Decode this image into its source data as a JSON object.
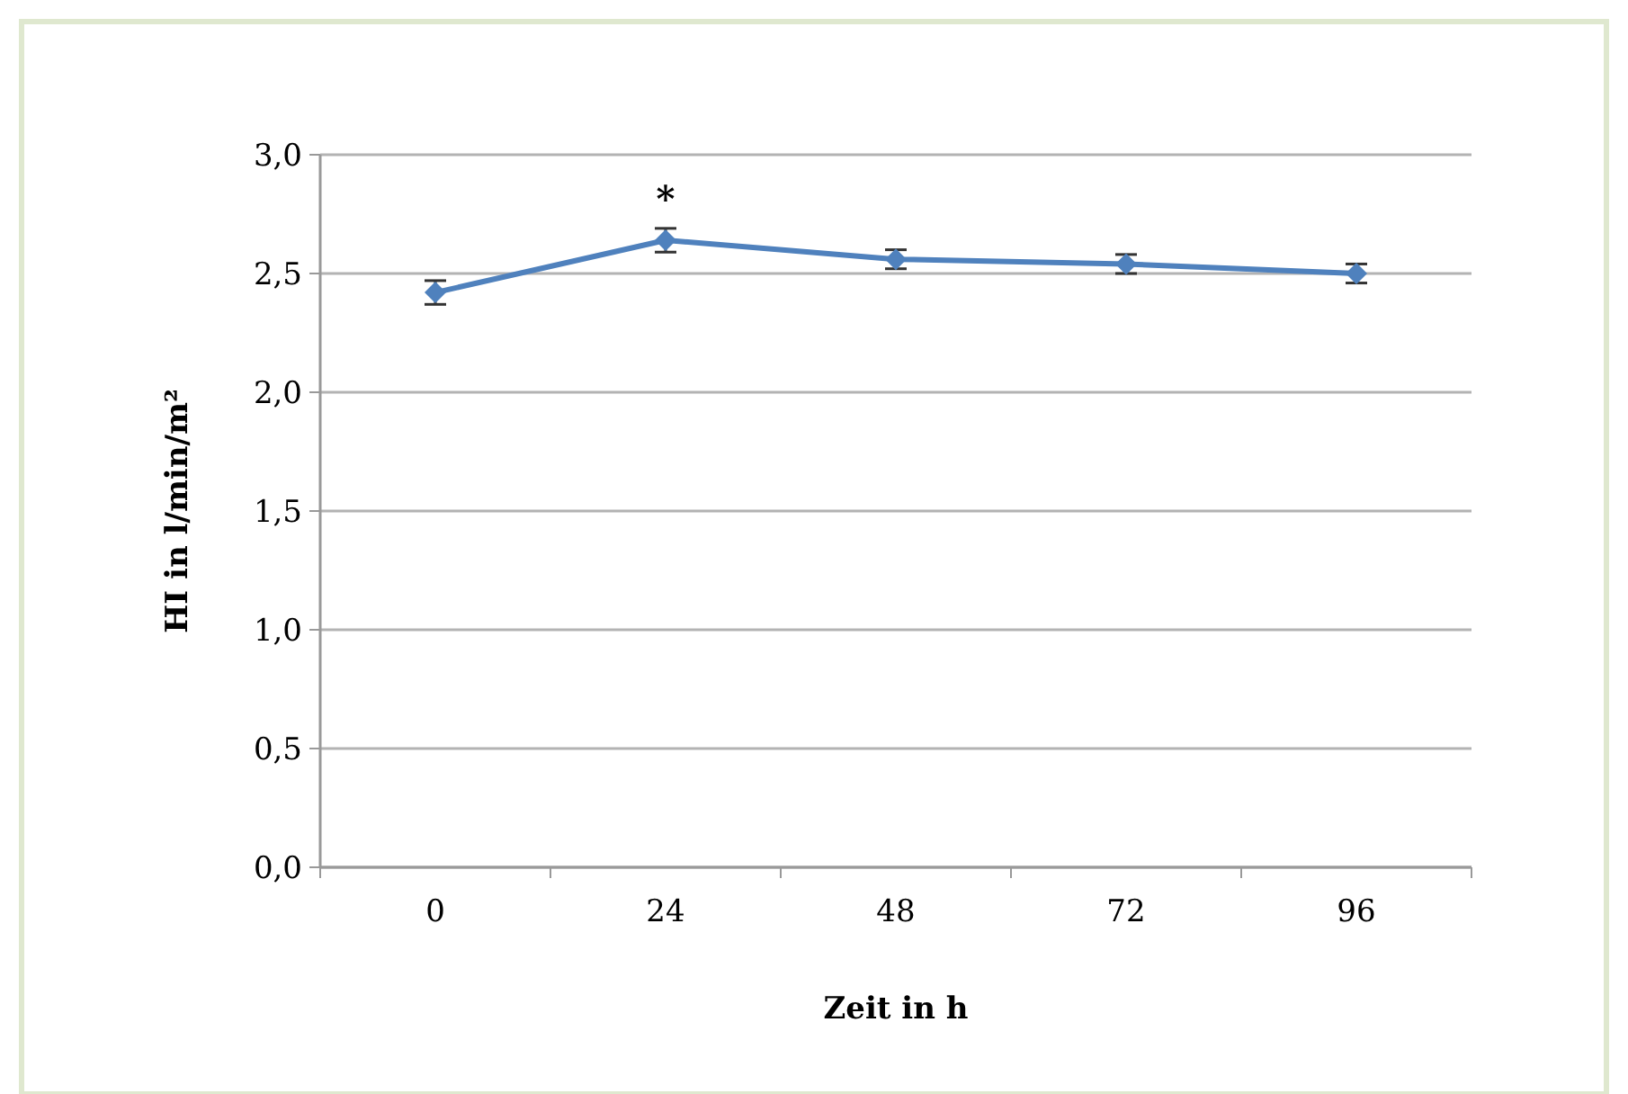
{
  "chart_data": {
    "type": "line",
    "xlabel": "Zeit in h",
    "ylabel": "HI in l/min/m²",
    "categories": [
      "0",
      "24",
      "48",
      "72",
      "96"
    ],
    "series": [
      {
        "color": "#4f81bd",
        "values": [
          2.42,
          2.64,
          2.56,
          2.54,
          2.5
        ],
        "errors": [
          0.05,
          0.05,
          0.04,
          0.04,
          0.04
        ]
      }
    ],
    "ylim": [
      0,
      3
    ],
    "yticks": [
      {
        "value": 0,
        "label": "0,0"
      },
      {
        "value": 0.5,
        "label": "0,5"
      },
      {
        "value": 1,
        "label": "1,0"
      },
      {
        "value": 1.5,
        "label": "1,5"
      },
      {
        "value": 2,
        "label": "2,0"
      },
      {
        "value": 2.5,
        "label": "2,5"
      },
      {
        "value": 3,
        "label": "3,0"
      }
    ],
    "grid": "y",
    "marker": "diamond",
    "line_style": "solid",
    "annotations": [
      {
        "text": "*",
        "x": "24",
        "y": 2.64
      }
    ]
  }
}
